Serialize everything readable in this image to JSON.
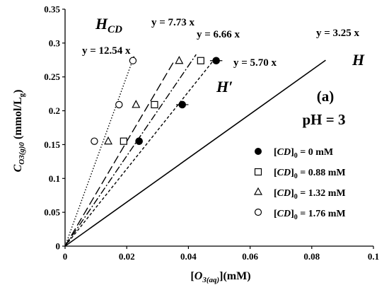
{
  "chart_data": {
    "type": "scatter",
    "xlabel_parts": [
      "[",
      "O",
      "3(aq)",
      "](mM)"
    ],
    "ylabel_parts": [
      "C",
      "O3(g)0",
      " (mmol/L",
      "g",
      ")"
    ],
    "xlim": [
      0,
      0.1
    ],
    "ylim": [
      0,
      0.35
    ],
    "xticks": [
      "0",
      "0.02",
      "0.04",
      "0.06",
      "0.08",
      "0.1"
    ],
    "yticks": [
      "0",
      "0.05",
      "0.1",
      "0.15",
      "0.2",
      "0.25",
      "0.3",
      "0.35"
    ],
    "panel_label": "(a)",
    "ph_label": "pH = 3",
    "series": [
      {
        "legend": "[CD]0 = 0 mM",
        "legend_prefix": "[",
        "legend_cd": "CD",
        "legend_sub": "0",
        "legend_value": " = 0 mM",
        "marker": "circle-filled",
        "x": [
          0.024,
          0.038,
          0.049
        ],
        "y": [
          0.155,
          0.209,
          0.274
        ],
        "xerr": [
          0.001,
          0.002,
          0.002
        ]
      },
      {
        "legend": "[CD]0 = 0.88 mM",
        "legend_prefix": "[",
        "legend_cd": "CD",
        "legend_sub": "0",
        "legend_value": " = 0.88 mM",
        "marker": "square-open",
        "x": [
          0.019,
          0.029,
          0.044
        ],
        "y": [
          0.155,
          0.209,
          0.274
        ]
      },
      {
        "legend": "[CD]0 = 1.32 mM",
        "legend_prefix": "[",
        "legend_cd": "CD",
        "legend_sub": "0",
        "legend_value": " = 1.32 mM",
        "marker": "triangle-open",
        "x": [
          0.014,
          0.023,
          0.037
        ],
        "y": [
          0.155,
          0.209,
          0.274
        ]
      },
      {
        "legend": "[CD]0 = 1.76 mM",
        "legend_prefix": "[",
        "legend_cd": "CD",
        "legend_sub": "0",
        "legend_value": " = 1.76 mM",
        "marker": "circle-open",
        "x": [
          0.0095,
          0.0175,
          0.022
        ],
        "y": [
          0.155,
          0.209,
          0.274
        ]
      }
    ],
    "lines": [
      {
        "slope": 3.25,
        "x_end": 0.0845,
        "style": "solid",
        "eq": "y = 3.25 x"
      },
      {
        "slope": 5.7,
        "x_end": 0.0485,
        "style": "dashed-short",
        "eq": "y = 5.70 x"
      },
      {
        "slope": 6.66,
        "x_end": 0.0425,
        "style": "dash-dot",
        "eq": "y = 6.66 x"
      },
      {
        "slope": 7.73,
        "x_end": 0.0355,
        "style": "dashed-long",
        "eq": "y = 7.73 x"
      },
      {
        "slope": 12.54,
        "x_end": 0.0225,
        "style": "dotted",
        "eq": "y = 12.54 x"
      }
    ],
    "curve_labels": [
      {
        "main": "H",
        "sub": "",
        "prime": "",
        "role": "H"
      },
      {
        "main": "H",
        "sub": "",
        "prime": "′",
        "role": "Hprime"
      },
      {
        "main": "H",
        "sub": "CD",
        "prime": "",
        "role": "HCD"
      }
    ]
  }
}
